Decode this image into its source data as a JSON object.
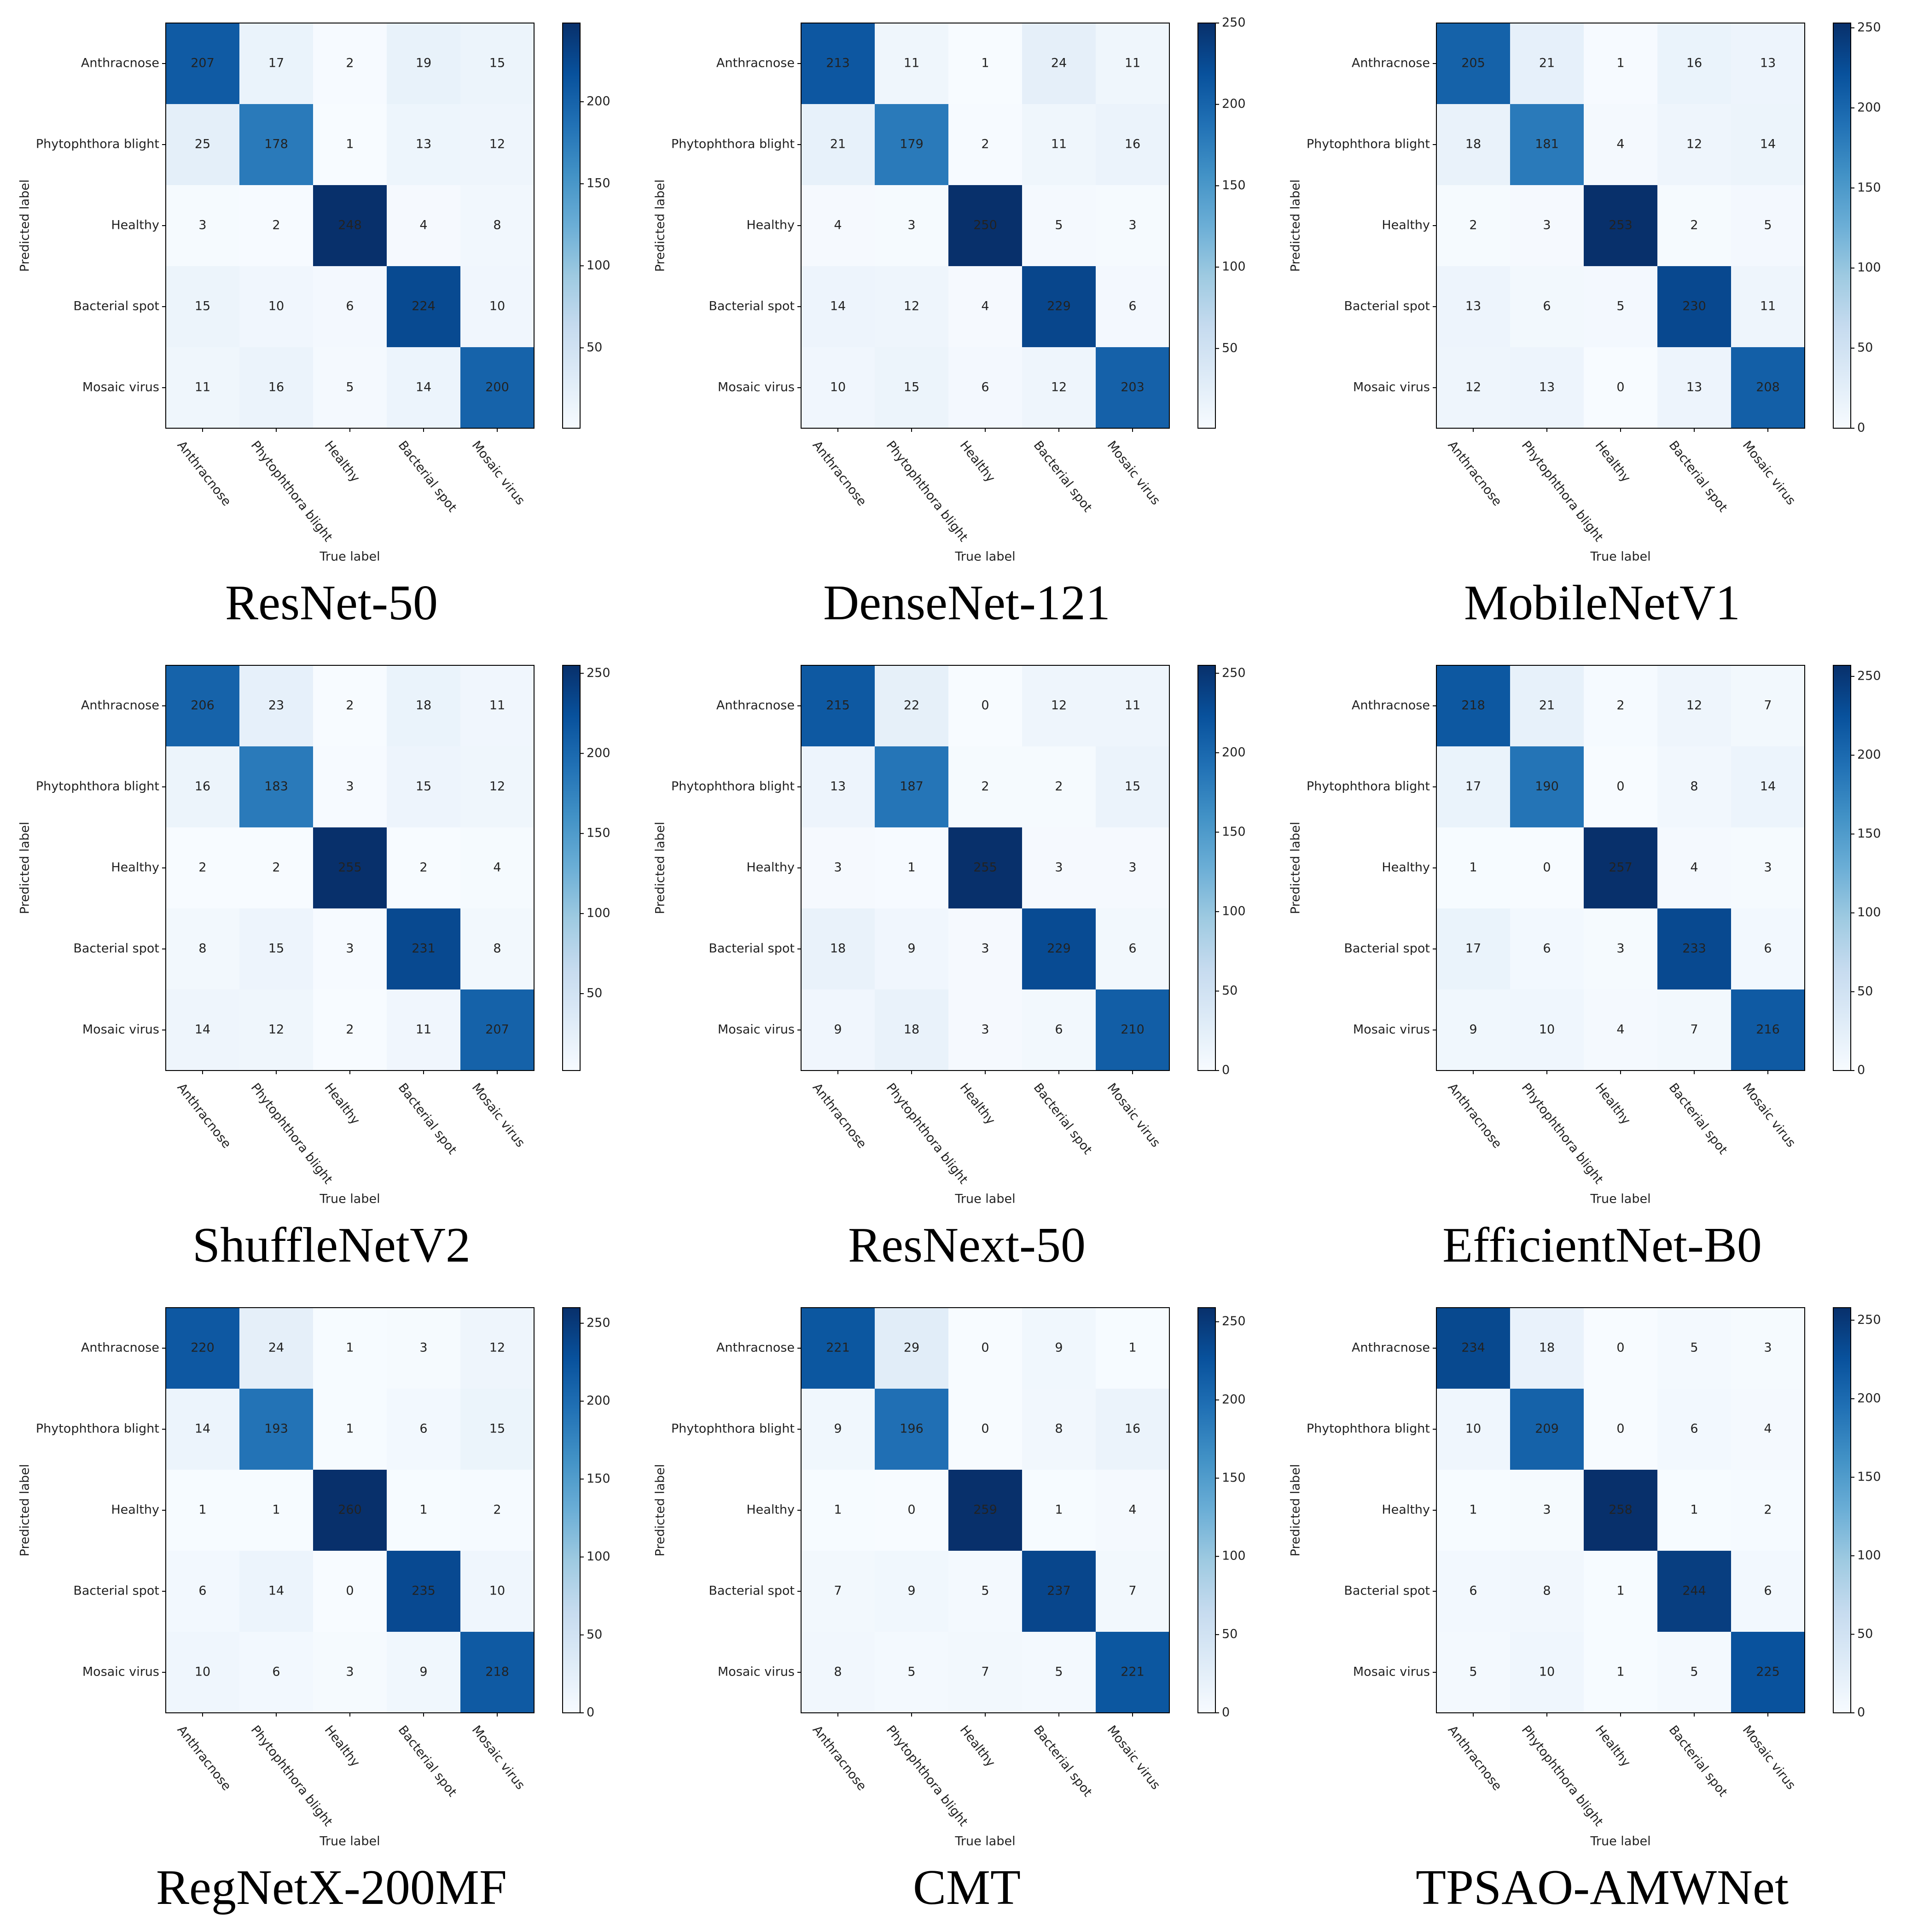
{
  "chart_data": [
    {
      "type": "heatmap",
      "title": "ResNet-50",
      "xlabel": "True label",
      "ylabel": "Predicted label",
      "categories": [
        "Anthracnose",
        "Phytophthora blight",
        "Healthy",
        "Bacterial spot",
        "Mosaic virus"
      ],
      "values": [
        [
          207,
          17,
          2,
          19,
          15
        ],
        [
          25,
          178,
          1,
          13,
          12
        ],
        [
          3,
          2,
          248,
          4,
          8
        ],
        [
          15,
          10,
          6,
          224,
          10
        ],
        [
          11,
          16,
          5,
          14,
          200
        ]
      ],
      "clim": [
        1,
        248
      ],
      "cticks": [
        50,
        100,
        150,
        200
      ],
      "colormap": "Blues"
    },
    {
      "type": "heatmap",
      "title": "DenseNet-121",
      "xlabel": "True label",
      "ylabel": "Predicted label",
      "categories": [
        "Anthracnose",
        "Phytophthora blight",
        "Healthy",
        "Bacterial spot",
        "Mosaic virus"
      ],
      "values": [
        [
          213,
          11,
          1,
          24,
          11
        ],
        [
          21,
          179,
          2,
          11,
          16
        ],
        [
          4,
          3,
          250,
          5,
          3
        ],
        [
          14,
          12,
          4,
          229,
          6
        ],
        [
          10,
          15,
          6,
          12,
          203
        ]
      ],
      "clim": [
        1,
        250
      ],
      "cticks": [
        50,
        100,
        150,
        200,
        250
      ],
      "colormap": "Blues"
    },
    {
      "type": "heatmap",
      "title": "MobileNetV1",
      "xlabel": "True label",
      "ylabel": "Predicted label",
      "categories": [
        "Anthracnose",
        "Phytophthora blight",
        "Healthy",
        "Bacterial spot",
        "Mosaic virus"
      ],
      "values": [
        [
          205,
          21,
          1,
          16,
          13
        ],
        [
          18,
          181,
          4,
          12,
          14
        ],
        [
          2,
          3,
          253,
          2,
          5
        ],
        [
          13,
          6,
          5,
          230,
          11
        ],
        [
          12,
          13,
          0,
          13,
          208
        ]
      ],
      "clim": [
        0,
        253
      ],
      "cticks": [
        0,
        50,
        100,
        150,
        200,
        250
      ],
      "colormap": "Blues"
    },
    {
      "type": "heatmap",
      "title": "ShuffleNetV2",
      "xlabel": "True label",
      "ylabel": "Predicted label",
      "categories": [
        "Anthracnose",
        "Phytophthora blight",
        "Healthy",
        "Bacterial spot",
        "Mosaic virus"
      ],
      "values": [
        [
          206,
          23,
          2,
          18,
          11
        ],
        [
          16,
          183,
          3,
          15,
          12
        ],
        [
          2,
          2,
          255,
          2,
          4
        ],
        [
          8,
          15,
          3,
          231,
          8
        ],
        [
          14,
          12,
          2,
          11,
          207
        ]
      ],
      "clim": [
        2,
        255
      ],
      "cticks": [
        50,
        100,
        150,
        200,
        250
      ],
      "colormap": "Blues"
    },
    {
      "type": "heatmap",
      "title": "ResNext-50",
      "xlabel": "True label",
      "ylabel": "Predicted label",
      "categories": [
        "Anthracnose",
        "Phytophthora blight",
        "Healthy",
        "Bacterial spot",
        "Mosaic virus"
      ],
      "values": [
        [
          215,
          22,
          0,
          12,
          11
        ],
        [
          13,
          187,
          2,
          2,
          15
        ],
        [
          3,
          1,
          255,
          3,
          3
        ],
        [
          18,
          9,
          3,
          229,
          6
        ],
        [
          9,
          18,
          3,
          6,
          210
        ]
      ],
      "clim": [
        0,
        255
      ],
      "cticks": [
        0,
        50,
        100,
        150,
        200,
        250
      ],
      "colormap": "Blues"
    },
    {
      "type": "heatmap",
      "title": "EfficientNet-B0",
      "xlabel": "True label",
      "ylabel": "Predicted label",
      "categories": [
        "Anthracnose",
        "Phytophthora blight",
        "Healthy",
        "Bacterial spot",
        "Mosaic virus"
      ],
      "values": [
        [
          218,
          21,
          2,
          12,
          7
        ],
        [
          17,
          190,
          0,
          8,
          14
        ],
        [
          1,
          0,
          257,
          4,
          3
        ],
        [
          17,
          6,
          3,
          233,
          6
        ],
        [
          9,
          10,
          4,
          7,
          216
        ]
      ],
      "clim": [
        0,
        257
      ],
      "cticks": [
        0,
        50,
        100,
        150,
        200,
        250
      ],
      "colormap": "Blues"
    },
    {
      "type": "heatmap",
      "title": "RegNetX-200MF",
      "xlabel": "True label",
      "ylabel": "Predicted label",
      "categories": [
        "Anthracnose",
        "Phytophthora blight",
        "Healthy",
        "Bacterial spot",
        "Mosaic virus"
      ],
      "values": [
        [
          220,
          24,
          1,
          3,
          12
        ],
        [
          14,
          193,
          1,
          6,
          15
        ],
        [
          1,
          1,
          260,
          1,
          2
        ],
        [
          6,
          14,
          0,
          235,
          10
        ],
        [
          10,
          6,
          3,
          9,
          218
        ]
      ],
      "clim": [
        0,
        260
      ],
      "cticks": [
        0,
        50,
        100,
        150,
        200,
        250
      ],
      "colormap": "Blues"
    },
    {
      "type": "heatmap",
      "title": "CMT",
      "xlabel": "True label",
      "ylabel": "Predicted label",
      "categories": [
        "Anthracnose",
        "Phytophthora blight",
        "Healthy",
        "Bacterial spot",
        "Mosaic virus"
      ],
      "values": [
        [
          221,
          29,
          0,
          9,
          1
        ],
        [
          9,
          196,
          0,
          8,
          16
        ],
        [
          1,
          0,
          259,
          1,
          4
        ],
        [
          7,
          9,
          5,
          237,
          7
        ],
        [
          8,
          5,
          7,
          5,
          221
        ]
      ],
      "clim": [
        0,
        259
      ],
      "cticks": [
        0,
        50,
        100,
        150,
        200,
        250
      ],
      "colormap": "Blues"
    },
    {
      "type": "heatmap",
      "title": "TPSAO-AMWNet",
      "xlabel": "True label",
      "ylabel": "Predicted label",
      "categories": [
        "Anthracnose",
        "Phytophthora blight",
        "Healthy",
        "Bacterial spot",
        "Mosaic virus"
      ],
      "values": [
        [
          234,
          18,
          0,
          5,
          3
        ],
        [
          10,
          209,
          0,
          6,
          4
        ],
        [
          1,
          3,
          258,
          1,
          2
        ],
        [
          6,
          8,
          1,
          244,
          6
        ],
        [
          5,
          10,
          1,
          5,
          225
        ]
      ],
      "clim": [
        0,
        258
      ],
      "cticks": [
        0,
        50,
        100,
        150,
        200,
        250
      ],
      "colormap": "Blues"
    }
  ]
}
